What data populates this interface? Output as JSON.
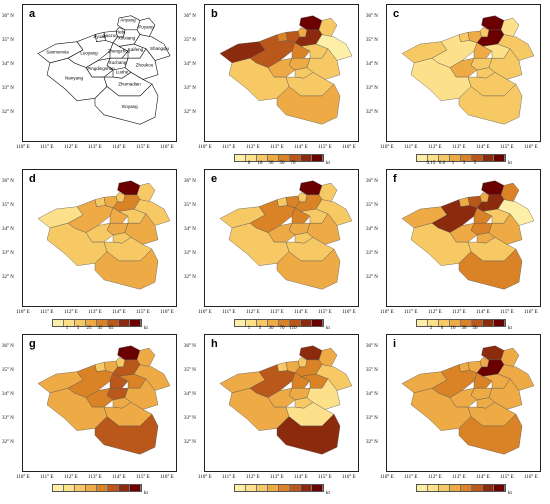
{
  "lat_labels": [
    "36° N",
    "35° N",
    "34° N",
    "33° N",
    "32° N"
  ],
  "lon_labels": [
    "110° E",
    "111° E",
    "112° E",
    "113° E",
    "114° E",
    "115° E",
    "116° E"
  ],
  "reference_map": {
    "letter": "a",
    "cities": [
      "Anyang",
      "Hebi",
      "Puyang",
      "Jiaozuo",
      "Xinxiang",
      "Jiyuan",
      "Luoyang",
      "Sanmenxia",
      "Zhengzhou",
      "Kaifeng",
      "Shangqiu",
      "Xuchang",
      "Pingdingshan",
      "Luohe",
      "Zhoukou",
      "Nanyang",
      "Zhumadian",
      "Xinyang"
    ]
  },
  "palette": [
    "#fdeea8",
    "#fde08a",
    "#f6c965",
    "#eeaa45",
    "#d98226",
    "#b9581a",
    "#8b2a0c",
    "#6b0000"
  ],
  "panels": [
    {
      "letter": "b",
      "ticks": [
        "6",
        "18",
        "30",
        "50",
        "70"
      ],
      "unit": "kt",
      "levels": {
        "Anyang": 7,
        "Hebi": 3,
        "Puyang": 2,
        "Jiaozuo": 5,
        "Xinxiang": 6,
        "Jiyuan": 4,
        "Luoyang": 5,
        "Sanmenxia": 6,
        "Zhengzhou": 4,
        "Kaifeng": 2,
        "Shangqiu": 0,
        "Xuchang": 3,
        "Pingdingshan": 3,
        "Luohe": 2,
        "Zhoukou": 2,
        "Nanyang": 2,
        "Zhumadian": 2,
        "Xinyang": 3
      }
    },
    {
      "letter": "c",
      "ticks": [
        "0.15",
        "0.6",
        "1",
        "3",
        "5"
      ],
      "unit": "kt",
      "levels": {
        "Anyang": 7,
        "Hebi": 2,
        "Puyang": 1,
        "Jiaozuo": 3,
        "Xinxiang": 7,
        "Jiyuan": 2,
        "Luoyang": 1,
        "Sanmenxia": 2,
        "Zhengzhou": 3,
        "Kaifeng": 1,
        "Shangqiu": 2,
        "Xuchang": 2,
        "Pingdingshan": 3,
        "Luohe": 2,
        "Zhoukou": 2,
        "Nanyang": 1,
        "Zhumadian": 2,
        "Xinyang": 2
      }
    },
    {
      "letter": "d",
      "ticks": [
        "1",
        "5",
        "25",
        "45",
        "65"
      ],
      "unit": "kt",
      "levels": {
        "Anyang": 7,
        "Hebi": 2,
        "Puyang": 2,
        "Jiaozuo": 3,
        "Xinxiang": 4,
        "Jiyuan": 2,
        "Luoyang": 3,
        "Sanmenxia": 1,
        "Zhengzhou": 3,
        "Kaifeng": 2,
        "Shangqiu": 2,
        "Xuchang": 3,
        "Pingdingshan": 2,
        "Luohe": 2,
        "Zhoukou": 3,
        "Nanyang": 2,
        "Zhumadian": 2,
        "Xinyang": 3
      }
    },
    {
      "letter": "e",
      "ticks": [
        "1",
        "5",
        "30",
        "70",
        "110"
      ],
      "unit": "kt",
      "levels": {
        "Anyang": 7,
        "Hebi": 2,
        "Puyang": 2,
        "Jiaozuo": 4,
        "Xinxiang": 4,
        "Jiyuan": 2,
        "Luoyang": 4,
        "Sanmenxia": 2,
        "Zhengzhou": 4,
        "Kaifeng": 2,
        "Shangqiu": 2,
        "Xuchang": 3,
        "Pingdingshan": 3,
        "Luohe": 2,
        "Zhoukou": 3,
        "Nanyang": 2,
        "Zhumadian": 2,
        "Xinyang": 3
      }
    },
    {
      "letter": "f",
      "ticks": [
        "2",
        "6",
        "10",
        "30",
        "50"
      ],
      "unit": "kt",
      "levels": {
        "Anyang": 7,
        "Hebi": 3,
        "Puyang": 4,
        "Jiaozuo": 5,
        "Xinxiang": 6,
        "Jiyuan": 3,
        "Luoyang": 6,
        "Sanmenxia": 3,
        "Zhengzhou": 4,
        "Kaifeng": 2,
        "Shangqiu": 0,
        "Xuchang": 4,
        "Pingdingshan": 3,
        "Luohe": 3,
        "Zhoukou": 3,
        "Nanyang": 2,
        "Zhumadian": 2,
        "Xinyang": 4
      }
    },
    {
      "letter": "g",
      "ticks": [
        "",
        "",
        "",
        "",
        "",
        ""
      ],
      "unit": "kt",
      "levels": {
        "Anyang": 7,
        "Hebi": 2,
        "Puyang": 3,
        "Jiaozuo": 3,
        "Xinxiang": 5,
        "Jiyuan": 2,
        "Luoyang": 4,
        "Sanmenxia": 3,
        "Zhengzhou": 5,
        "Kaifeng": 4,
        "Shangqiu": 3,
        "Xuchang": 5,
        "Pingdingshan": 4,
        "Luohe": 3,
        "Zhoukou": 3,
        "Nanyang": 3,
        "Zhumadian": 3,
        "Xinyang": 5
      }
    },
    {
      "letter": "h",
      "ticks": [
        "",
        "",
        "",
        "",
        "",
        ""
      ],
      "unit": "kt",
      "levels": {
        "Anyang": 6,
        "Hebi": 2,
        "Puyang": 3,
        "Jiaozuo": 3,
        "Xinxiang": 4,
        "Jiyuan": 2,
        "Luoyang": 5,
        "Sanmenxia": 3,
        "Zhengzhou": 4,
        "Kaifeng": 4,
        "Shangqiu": 2,
        "Xuchang": 3,
        "Pingdingshan": 3,
        "Luohe": 2,
        "Zhoukou": 1,
        "Nanyang": 3,
        "Zhumadian": 1,
        "Xinyang": 6
      }
    },
    {
      "letter": "i",
      "ticks": [
        "",
        "",
        "",
        "",
        "",
        ""
      ],
      "unit": "kt",
      "levels": {
        "Anyang": 6,
        "Hebi": 3,
        "Puyang": 3,
        "Jiaozuo": 3,
        "Xinxiang": 7,
        "Jiyuan": 3,
        "Luoyang": 4,
        "Sanmenxia": 3,
        "Zhengzhou": 4,
        "Kaifeng": 3,
        "Shangqiu": 3,
        "Xuchang": 3,
        "Pingdingshan": 3,
        "Luohe": 3,
        "Zhoukou": 3,
        "Nanyang": 3,
        "Zhumadian": 3,
        "Xinyang": 4
      }
    }
  ]
}
